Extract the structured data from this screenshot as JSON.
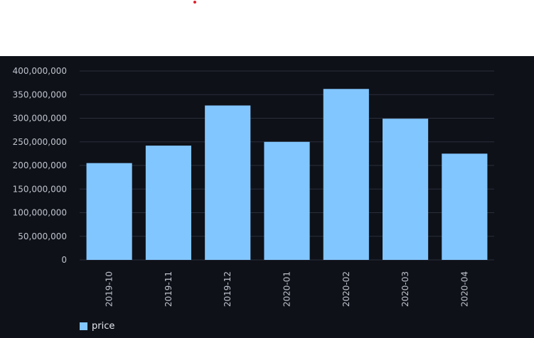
{
  "colors": {
    "background": "#0e1118",
    "bar": "#82c6ff",
    "grid": "#2a2f3a",
    "tick_text": "#bfc3cc",
    "legend_text": "#e6e8ee"
  },
  "chart_data": {
    "type": "bar",
    "categories": [
      "2019-10",
      "2019-11",
      "2019-12",
      "2020-01",
      "2020-02",
      "2020-03",
      "2020-04"
    ],
    "series": [
      {
        "name": "price",
        "values": [
          205000000,
          242000000,
          327000000,
          250000000,
          362000000,
          299000000,
          225000000
        ]
      }
    ],
    "ylim": [
      0,
      400000000
    ],
    "yticks": [
      0,
      50000000,
      100000000,
      150000000,
      200000000,
      250000000,
      300000000,
      350000000,
      400000000
    ],
    "ytick_labels": [
      "0",
      "50,000,000",
      "100,000,000",
      "150,000,000",
      "200,000,000",
      "250,000,000",
      "300,000,000",
      "350,000,000",
      "400,000,000"
    ],
    "grid": true,
    "legend_position": "bottom-left",
    "title": "",
    "xlabel": "",
    "ylabel": ""
  },
  "legend": {
    "label": "price"
  }
}
